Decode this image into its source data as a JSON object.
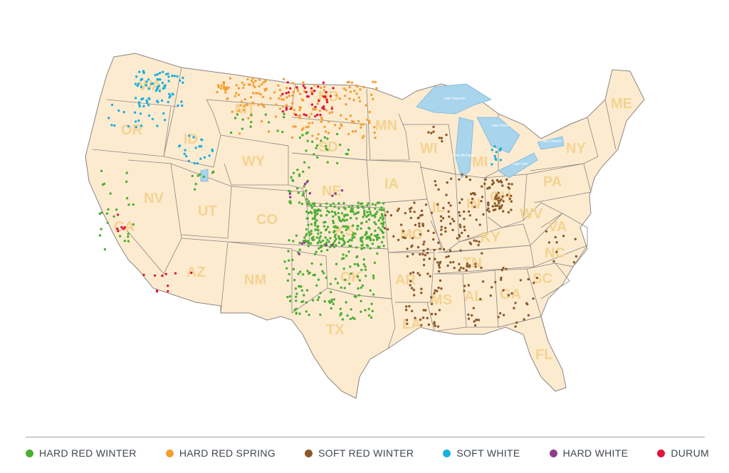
{
  "map": {
    "states": [
      "WA",
      "OR",
      "ID",
      "MT",
      "WY",
      "NV",
      "UT",
      "CO",
      "AZ",
      "NM",
      "CA",
      "ND",
      "SD",
      "NE",
      "KS",
      "OK",
      "TX",
      "MN",
      "IA",
      "MO",
      "AR",
      "LA",
      "WI",
      "IL",
      "IN",
      "MI",
      "OH",
      "KY",
      "TN",
      "MS",
      "AL",
      "GA",
      "FL",
      "SC",
      "NC",
      "VA",
      "WV",
      "PA",
      "NY",
      "ME"
    ],
    "lakes": [
      "Lake Superior",
      "Lake Huron",
      "Lake Michigan",
      "Lake Erie",
      "Lake Ontario"
    ],
    "colors": {
      "land": "#fdebd0",
      "border": "#8a8580",
      "water": "#a8d4ec",
      "label": "#f3d391"
    }
  },
  "legend": [
    {
      "label": "HARD RED WINTER",
      "color": "#4caf35"
    },
    {
      "label": "HARD RED SPRING",
      "color": "#f2a035"
    },
    {
      "label": "SOFT RED WINTER",
      "color": "#8b5a2b"
    },
    {
      "label": "SOFT WHITE",
      "color": "#1ab0e0"
    },
    {
      "label": "HARD WHITE",
      "color": "#8e3b8c"
    },
    {
      "label": "DURUM",
      "color": "#e0143c"
    }
  ]
}
